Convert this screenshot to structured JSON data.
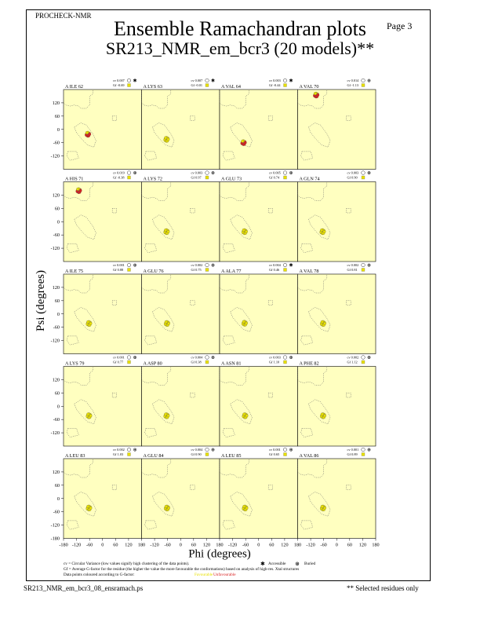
{
  "header": {
    "program": "PROCHECK-NMR",
    "page_label": "Page  3",
    "title": "Ensemble Ramachandran plots",
    "subtitle": "SR213_NMR_em_bcr3 (20 models)**"
  },
  "footer": {
    "filename": "SR213_NMR_em_bcr3_08_ensramach.ps",
    "note": "** Selected residues only"
  },
  "legend": {
    "cv_line": "cv = Circular Variance (low values signify high clustering of the data points).",
    "gf_line": "Gf = Average G-factor for the residue (the higher the value the more favourable the conformations) based on analysis of high-res. Xtal structures",
    "colour_line": "Data points coloured according to G-factor:",
    "favourable": "Favourable",
    "unfavourable": "Unfavourable",
    "accessible": "Accessible",
    "buried": "Buried",
    "favourable_color": "#e8e000",
    "unfavourable_color": "#d82020"
  },
  "chart_data": {
    "type": "scatter",
    "xlabel": "Phi (degrees)",
    "ylabel": "Psi (degrees)",
    "xlim": [
      -180,
      180
    ],
    "ylim": [
      -180,
      180
    ],
    "xticks": [
      "-180",
      "-120",
      "-60",
      "0",
      "60",
      "120",
      "180"
    ],
    "yticks": [
      "120",
      "60",
      "0",
      "-60",
      "-120"
    ],
    "bottom_yticks": [
      "-180"
    ],
    "panel_background": "#ffffc0",
    "panels": [
      {
        "residue": "A ILE 62",
        "cv": "0.007",
        "gf": "-0.69",
        "access": "A",
        "cluster": [
          -68,
          -22
        ],
        "unfav": true
      },
      {
        "residue": "A LYS 63",
        "cv": "0.007",
        "gf": "-0.01",
        "access": "A",
        "cluster": [
          -65,
          -45
        ],
        "unfav": false
      },
      {
        "residue": "A VAL 64",
        "cv": "0.003",
        "gf": "-0.44",
        "access": "A",
        "cluster": [
          -70,
          -60
        ],
        "unfav": true
      },
      {
        "residue": "A VAL 70",
        "cv": "0.014",
        "gf": "-1.13",
        "access": "B",
        "cluster": [
          -95,
          155
        ],
        "unfav": true
      },
      {
        "residue": "A HIS 71",
        "cv": "0.019",
        "gf": "-0.38",
        "access": "B",
        "cluster": [
          -110,
          140
        ],
        "unfav": true
      },
      {
        "residue": "A LYS 72",
        "cv": "0.003",
        "gf": "0.97",
        "access": "B",
        "cluster": [
          -65,
          -45
        ],
        "unfav": false
      },
      {
        "residue": "A GLU 73",
        "cv": "0.005",
        "gf": "0.74",
        "access": "B",
        "cluster": [
          -65,
          -45
        ],
        "unfav": false
      },
      {
        "residue": "A GLN 74",
        "cv": "0.003",
        "gf": "0.90",
        "access": "B",
        "cluster": [
          -65,
          -45
        ],
        "unfav": false
      },
      {
        "residue": "A ILE 75",
        "cv": "0.001",
        "gf": "0.88",
        "access": "B",
        "cluster": [
          -63,
          -43
        ],
        "unfav": false
      },
      {
        "residue": "A GLU 76",
        "cv": "0.002",
        "gf": "0.75",
        "access": "B",
        "cluster": [
          -63,
          -43
        ],
        "unfav": false
      },
      {
        "residue": "A ALA 77",
        "cv": "0.004",
        "gf": "0.46",
        "access": "A",
        "cluster": [
          -65,
          -42
        ],
        "unfav": false
      },
      {
        "residue": "A VAL 78",
        "cv": "0.002",
        "gf": "0.81",
        "access": "B",
        "cluster": [
          -63,
          -43
        ],
        "unfav": false
      },
      {
        "residue": "A LYS 79",
        "cv": "0.001",
        "gf": "0.77",
        "access": "B",
        "cluster": [
          -63,
          -43
        ],
        "unfav": false
      },
      {
        "residue": "A ASP 80",
        "cv": "0.004",
        "gf": "0.38",
        "access": "B",
        "cluster": [
          -65,
          -43
        ],
        "unfav": false
      },
      {
        "residue": "A ASN 81",
        "cv": "0.003",
        "gf": "1.10",
        "access": "B",
        "cluster": [
          -63,
          -43
        ],
        "unfav": false
      },
      {
        "residue": "A PHE 82",
        "cv": "0.002",
        "gf": "1.12",
        "access": "B",
        "cluster": [
          -63,
          -43
        ],
        "unfav": false
      },
      {
        "residue": "A LEU 83",
        "cv": "0.002",
        "gf": "1.03",
        "access": "B",
        "cluster": [
          -63,
          -43
        ],
        "unfav": false
      },
      {
        "residue": "A GLU 84",
        "cv": "0.004",
        "gf": "0.90",
        "access": "B",
        "cluster": [
          -63,
          -43
        ],
        "unfav": false
      },
      {
        "residue": "A LEU 85",
        "cv": "0.001",
        "gf": "0.65",
        "access": "B",
        "cluster": [
          -63,
          -43
        ],
        "unfav": false
      },
      {
        "residue": "A VAL 86",
        "cv": "0.001",
        "gf": "0.89",
        "access": "B",
        "cluster": [
          -63,
          -43
        ],
        "unfav": false
      }
    ]
  }
}
